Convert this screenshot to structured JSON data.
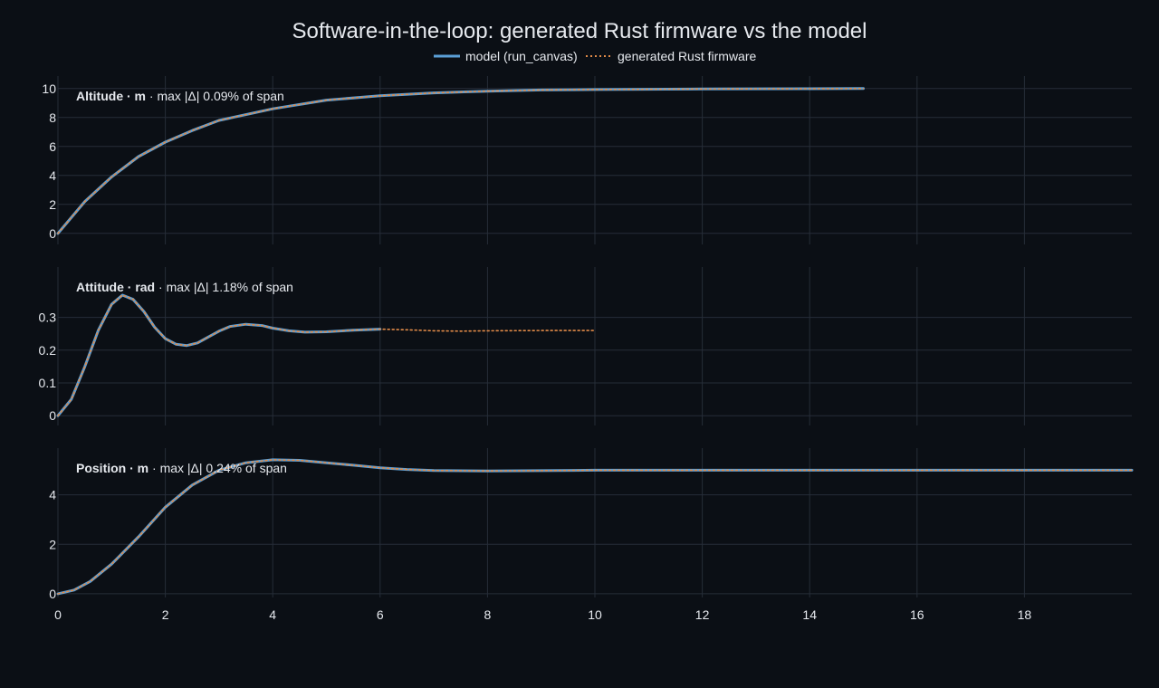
{
  "title": "Software-in-the-loop: generated Rust firmware vs the model",
  "colors": {
    "background": "#0b0f15",
    "grid": "#262d38",
    "text": "#e6e9ee",
    "model": "#5b9fd6",
    "firmware": "#e08a48"
  },
  "legend": {
    "placement": "top-center",
    "items": [
      {
        "label": "model (run_canvas)",
        "style": "solid"
      },
      {
        "label": "generated Rust firmware",
        "style": "dotted"
      }
    ]
  },
  "chart_data": {
    "type": "line",
    "shared_x_axis": true,
    "xlim": [
      0,
      20
    ],
    "x_ticks": [
      0,
      2,
      4,
      6,
      8,
      10,
      12,
      14,
      16,
      18
    ],
    "grid": true,
    "panels": [
      {
        "label": "Altitude · m",
        "stat": "max |Δ| 0.09% of span",
        "ylim": [
          -0.2,
          10.3
        ],
        "y_ticks": [
          0,
          2,
          4,
          6,
          8,
          10
        ],
        "series": [
          {
            "name": "model (run_canvas)",
            "x": [
              0,
              0.5,
              1,
              1.5,
              2,
              2.5,
              3,
              4,
              5,
              6,
              7,
              8,
              9,
              10,
              12,
              14,
              15
            ],
            "y": [
              0,
              2.2,
              3.9,
              5.3,
              6.3,
              7.1,
              7.8,
              8.6,
              9.2,
              9.5,
              9.7,
              9.82,
              9.9,
              9.93,
              9.97,
              9.99,
              10
            ]
          },
          {
            "name": "generated Rust firmware",
            "x": [
              0,
              0.5,
              1,
              1.5,
              2,
              2.5,
              3,
              4,
              5,
              6,
              7,
              8,
              9,
              10,
              12,
              14,
              15
            ],
            "y": [
              0,
              2.2,
              3.9,
              5.3,
              6.3,
              7.1,
              7.8,
              8.6,
              9.2,
              9.5,
              9.7,
              9.82,
              9.9,
              9.93,
              9.97,
              9.99,
              10
            ]
          }
        ]
      },
      {
        "label": "Attitude · rad",
        "stat": "max |Δ| 1.18% of span",
        "ylim": [
          -0.005,
          0.39
        ],
        "y_ticks": [
          0,
          0.1,
          0.2,
          0.3
        ],
        "series": [
          {
            "name": "model (run_canvas)",
            "x": [
              0,
              0.25,
              0.5,
              0.75,
              1,
              1.2,
              1.4,
              1.6,
              1.8,
              2,
              2.2,
              2.4,
              2.6,
              2.8,
              3,
              3.2,
              3.5,
              3.8,
              4,
              4.3,
              4.6,
              5,
              5.5,
              6
            ],
            "y": [
              0,
              0.05,
              0.15,
              0.26,
              0.34,
              0.368,
              0.355,
              0.318,
              0.27,
              0.235,
              0.218,
              0.214,
              0.222,
              0.24,
              0.258,
              0.272,
              0.279,
              0.275,
              0.267,
              0.259,
              0.255,
              0.256,
              0.261,
              0.264
            ]
          },
          {
            "name": "generated Rust firmware",
            "x": [
              0,
              0.25,
              0.5,
              0.75,
              1,
              1.2,
              1.4,
              1.6,
              1.8,
              2,
              2.2,
              2.4,
              2.6,
              2.8,
              3,
              3.2,
              3.5,
              3.8,
              4,
              4.3,
              4.6,
              5,
              5.5,
              6,
              6.5,
              7,
              7.5,
              8,
              9,
              10
            ],
            "y": [
              0,
              0.05,
              0.15,
              0.26,
              0.34,
              0.368,
              0.355,
              0.318,
              0.27,
              0.235,
              0.218,
              0.214,
              0.222,
              0.24,
              0.258,
              0.272,
              0.279,
              0.275,
              0.267,
              0.259,
              0.255,
              0.256,
              0.261,
              0.264,
              0.262,
              0.259,
              0.258,
              0.259,
              0.26,
              0.26
            ]
          }
        ]
      },
      {
        "label": "Position · m",
        "stat": "max |Δ| 0.24% of span",
        "ylim": [
          -0.15,
          5.6
        ],
        "y_ticks": [
          0,
          2,
          4
        ],
        "series": [
          {
            "name": "model (run_canvas)",
            "x": [
              0,
              0.3,
              0.6,
              1,
              1.5,
              2,
              2.5,
              3,
              3.5,
              4,
              4.5,
              5,
              5.5,
              6,
              6.5,
              7,
              8,
              9,
              10,
              12,
              14,
              16,
              18,
              20
            ],
            "y": [
              0,
              0.15,
              0.5,
              1.2,
              2.3,
              3.5,
              4.4,
              5.0,
              5.3,
              5.42,
              5.4,
              5.3,
              5.2,
              5.1,
              5.03,
              4.99,
              4.97,
              4.98,
              5.0,
              5.0,
              5.0,
              5.0,
              5.0,
              5.0
            ]
          },
          {
            "name": "generated Rust firmware",
            "x": [
              0,
              0.3,
              0.6,
              1,
              1.5,
              2,
              2.5,
              3,
              3.5,
              4,
              4.5,
              5,
              5.5,
              6,
              6.5,
              7,
              8,
              9,
              10,
              12,
              14,
              16,
              18,
              20
            ],
            "y": [
              0,
              0.15,
              0.5,
              1.2,
              2.3,
              3.5,
              4.4,
              5.0,
              5.3,
              5.42,
              5.4,
              5.3,
              5.2,
              5.1,
              5.03,
              4.99,
              4.97,
              4.98,
              5.0,
              5.0,
              5.0,
              5.0,
              5.0,
              5.0
            ]
          }
        ]
      }
    ]
  }
}
